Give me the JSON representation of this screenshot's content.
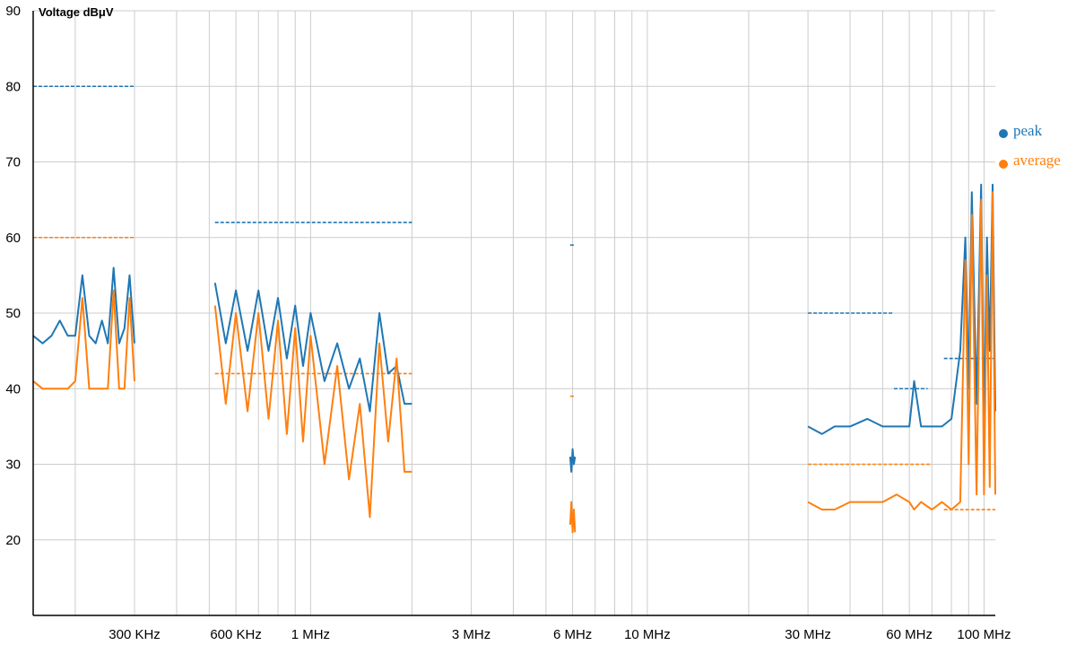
{
  "chart_data": {
    "type": "line",
    "ylabel": "Voltage dBμV",
    "ylim": [
      10,
      90
    ],
    "yticks": [
      20,
      30,
      40,
      50,
      60,
      70,
      80,
      90
    ],
    "x_scale": "log",
    "xlim_hz": [
      150000,
      108000000
    ],
    "xticks": [
      {
        "label": "300 KHz",
        "hz": 300000
      },
      {
        "label": "600 KHz",
        "hz": 600000
      },
      {
        "label": "1 MHz",
        "hz": 1000000
      },
      {
        "label": "3 MHz",
        "hz": 3000000
      },
      {
        "label": "6 MHz",
        "hz": 6000000
      },
      {
        "label": "10 MHz",
        "hz": 10000000
      },
      {
        "label": "30 MHz",
        "hz": 30000000
      },
      {
        "label": "60 MHz",
        "hz": 60000000
      },
      {
        "label": "100 MHz",
        "hz": 100000000
      }
    ],
    "grid_hz": [
      200000,
      300000,
      400000,
      500000,
      600000,
      700000,
      800000,
      900000,
      1000000,
      2000000,
      3000000,
      4000000,
      5000000,
      6000000,
      7000000,
      8000000,
      9000000,
      10000000,
      20000000,
      30000000,
      40000000,
      50000000,
      60000000,
      70000000,
      80000000,
      90000000,
      100000000
    ],
    "grid": true,
    "legend": "right",
    "series": [
      {
        "name": "peak",
        "color": "#1f77b4",
        "segments": [
          {
            "x": [
              150000,
              160000,
              170000,
              180000,
              190000,
              200000,
              210000,
              220000,
              230000,
              240000,
              250000,
              260000,
              270000,
              280000,
              290000,
              300000
            ],
            "y": [
              47,
              46,
              47,
              49,
              47,
              47,
              55,
              47,
              46,
              49,
              46,
              56,
              46,
              48,
              55,
              46
            ]
          },
          {
            "x": [
              520000,
              560000,
              600000,
              650000,
              700000,
              750000,
              800000,
              850000,
              900000,
              950000,
              1000000,
              1100000,
              1200000,
              1300000,
              1400000,
              1500000,
              1600000,
              1700000,
              1800000,
              1900000,
              2000000
            ],
            "y": [
              54,
              46,
              53,
              45,
              53,
              45,
              52,
              44,
              51,
              43,
              50,
              41,
              46,
              40,
              44,
              37,
              50,
              42,
              43,
              38,
              38
            ]
          },
          {
            "x": [
              5900000,
              5950000,
              6000000,
              6050000,
              6100000
            ],
            "y": [
              31,
              29,
              32,
              30,
              31
            ]
          },
          {
            "x": [
              30000000,
              33000000,
              36000000,
              40000000,
              45000000,
              50000000,
              55000000,
              60000000,
              62000000,
              65000000,
              70000000,
              75000000,
              80000000,
              85000000,
              88000000,
              90000000,
              92000000,
              95000000,
              98000000,
              100000000,
              102000000,
              104000000,
              106000000,
              108000000
            ],
            "y": [
              35,
              34,
              35,
              35,
              36,
              35,
              35,
              35,
              41,
              35,
              35,
              35,
              36,
              45,
              60,
              40,
              66,
              38,
              67,
              35,
              60,
              45,
              67,
              37
            ]
          }
        ]
      },
      {
        "name": "average",
        "color": "#ff7f0e",
        "segments": [
          {
            "x": [
              150000,
              160000,
              170000,
              180000,
              190000,
              200000,
              210000,
              220000,
              230000,
              240000,
              250000,
              260000,
              270000,
              280000,
              290000,
              300000
            ],
            "y": [
              41,
              40,
              40,
              40,
              40,
              41,
              52,
              40,
              40,
              40,
              40,
              53,
              40,
              40,
              52,
              41
            ]
          },
          {
            "x": [
              520000,
              560000,
              600000,
              650000,
              700000,
              750000,
              800000,
              850000,
              900000,
              950000,
              1000000,
              1100000,
              1200000,
              1300000,
              1400000,
              1500000,
              1600000,
              1700000,
              1800000,
              1900000,
              2000000
            ],
            "y": [
              51,
              38,
              50,
              37,
              50,
              36,
              49,
              34,
              48,
              33,
              47,
              30,
              43,
              28,
              38,
              23,
              46,
              33,
              44,
              29,
              29
            ]
          },
          {
            "x": [
              5900000,
              5950000,
              6000000,
              6050000,
              6100000
            ],
            "y": [
              22,
              25,
              21,
              24,
              21
            ]
          },
          {
            "x": [
              30000000,
              33000000,
              36000000,
              40000000,
              45000000,
              50000000,
              55000000,
              60000000,
              62000000,
              65000000,
              70000000,
              75000000,
              80000000,
              85000000,
              88000000,
              90000000,
              92000000,
              95000000,
              98000000,
              100000000,
              102000000,
              104000000,
              106000000,
              108000000
            ],
            "y": [
              25,
              24,
              24,
              25,
              25,
              25,
              26,
              25,
              24,
              25,
              24,
              25,
              24,
              25,
              57,
              30,
              63,
              26,
              65,
              26,
              55,
              27,
              66,
              26
            ]
          }
        ]
      }
    ],
    "limit_lines": [
      {
        "series": "peak",
        "x": [
          150000,
          300000
        ],
        "y": 80
      },
      {
        "series": "average",
        "x": [
          150000,
          300000
        ],
        "y": 60
      },
      {
        "series": "peak",
        "x": [
          520000,
          2000000
        ],
        "y": 62
      },
      {
        "series": "average",
        "x": [
          520000,
          2000000
        ],
        "y": 42
      },
      {
        "series": "peak",
        "x": [
          5900000,
          6100000
        ],
        "y": 59
      },
      {
        "series": "average",
        "x": [
          5900000,
          6100000
        ],
        "y": 39
      },
      {
        "series": "peak",
        "x": [
          30000000,
          54000000
        ],
        "y": 50
      },
      {
        "series": "average",
        "x": [
          30000000,
          70000000
        ],
        "y": 30
      },
      {
        "series": "peak",
        "x": [
          54000000,
          68000000
        ],
        "y": 40
      },
      {
        "series": "peak",
        "x": [
          76000000,
          108000000
        ],
        "y": 44
      },
      {
        "series": "average",
        "x": [
          76000000,
          108000000
        ],
        "y": 24
      }
    ]
  }
}
